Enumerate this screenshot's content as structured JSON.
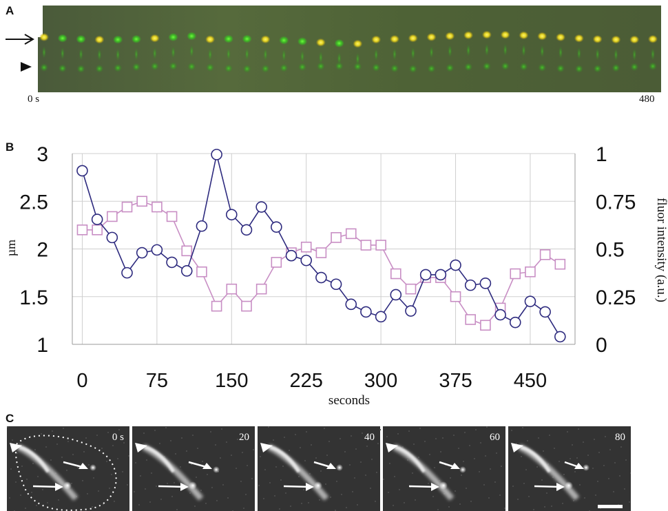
{
  "panels": {
    "a": {
      "letter": "A",
      "time_start": "0 s",
      "time_end": "480"
    },
    "b": {
      "letter": "B"
    },
    "c": {
      "letter": "C",
      "frame_times": [
        "0 s",
        "20",
        "40",
        "60",
        "80"
      ]
    }
  },
  "chart_data": {
    "type": "line",
    "xlabel": "seconds",
    "ylabel_left": "µm",
    "ylabel_right": "fluor intensity (a.u.)",
    "x_ticks": [
      0,
      75,
      150,
      225,
      300,
      375,
      450
    ],
    "y_left_ticks": [
      "1",
      "1.5",
      "2",
      "2.5",
      "3"
    ],
    "y_right_ticks": [
      "0",
      "0.25",
      "0.5",
      "0.75",
      "1"
    ],
    "xlim": [
      -10,
      495
    ],
    "ylim_left": [
      1,
      3
    ],
    "ylim_right": [
      0,
      1
    ],
    "series": [
      {
        "axis": "left",
        "marker": "circle",
        "color": "#2d2a7e",
        "x": [
          0,
          15,
          30,
          45,
          60,
          75,
          90,
          105,
          120,
          135,
          150,
          165,
          180,
          195,
          210,
          225,
          240,
          255,
          270,
          285,
          300,
          315,
          330,
          345,
          360,
          375,
          390,
          405,
          420,
          435,
          450,
          465,
          480
        ],
        "y": [
          2.82,
          2.31,
          2.12,
          1.75,
          1.96,
          1.99,
          1.86,
          1.77,
          2.24,
          2.99,
          2.36,
          2.2,
          2.44,
          2.23,
          1.93,
          1.88,
          1.7,
          1.63,
          1.42,
          1.34,
          1.29,
          1.52,
          1.35,
          1.73,
          1.73,
          1.83,
          1.62,
          1.64,
          1.31,
          1.23,
          1.45,
          1.34,
          1.08
        ]
      },
      {
        "axis": "right",
        "marker": "square",
        "color": "#c88ec4",
        "x": [
          0,
          15,
          30,
          45,
          60,
          75,
          90,
          105,
          120,
          135,
          150,
          165,
          180,
          195,
          210,
          225,
          240,
          255,
          270,
          285,
          300,
          315,
          330,
          345,
          360,
          375,
          390,
          405,
          420,
          435,
          450,
          465,
          480
        ],
        "y": [
          0.6,
          0.6,
          0.67,
          0.72,
          0.75,
          0.72,
          0.67,
          0.49,
          0.38,
          0.2,
          0.29,
          0.2,
          0.29,
          0.43,
          0.48,
          0.51,
          0.48,
          0.56,
          0.58,
          0.52,
          0.52,
          0.37,
          0.29,
          0.35,
          0.35,
          0.25,
          0.13,
          0.1,
          0.19,
          0.37,
          0.38,
          0.47,
          0.42
        ]
      }
    ]
  }
}
